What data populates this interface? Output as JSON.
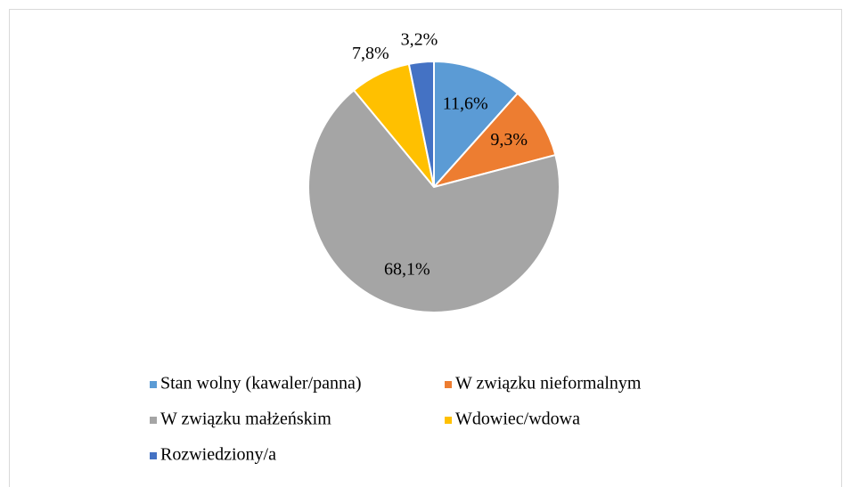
{
  "chart_data": {
    "type": "pie",
    "categories": [
      "Stan wolny (kawaler/panna)",
      "W związku nieformalnym",
      "W związku małżeńskim",
      "Wdowiec/wdowa",
      "Rozwiedziony/a"
    ],
    "values": [
      11.6,
      9.3,
      68.1,
      7.8,
      3.2
    ],
    "value_labels": [
      "11,6%",
      "9,3%",
      "68,1%",
      "7,8%",
      "3,2%"
    ],
    "colors": [
      "#5b9bd5",
      "#ed7d31",
      "#a5a5a5",
      "#ffc000",
      "#4472c4"
    ],
    "legend": "bottom"
  }
}
